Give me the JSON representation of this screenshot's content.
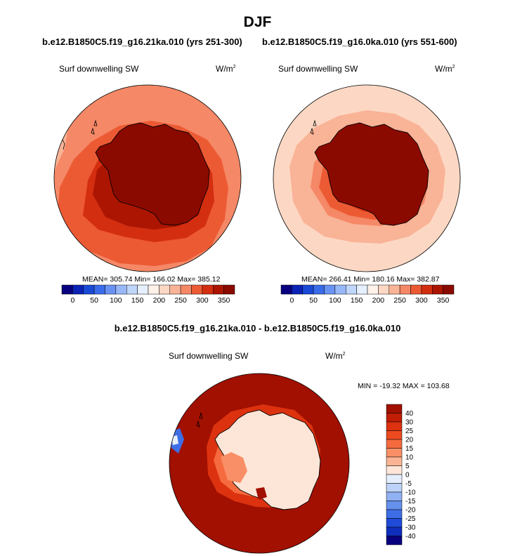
{
  "figure": {
    "title": "DJF",
    "comparison_title": "b.e12.B1850C5.f19_g16.21ka.010 - b.e12.B1850C5.f19_g16.0ka.010"
  },
  "colors": {
    "coast": "#000000",
    "land_left": "#8b0a00",
    "land_right": "#8b0a00",
    "ocean_left": "#f06a44",
    "ocean_right": "#fcd8c4",
    "diff_ocean": "#a11000",
    "diff_land": "#fde6d8"
  },
  "chart_data": [
    {
      "type": "heatmap",
      "projection": "south-polar-stereographic",
      "subtitle": "b.e12.B1850C5.f19_g16.21ka.010 (yrs 251-300)",
      "variable": "Surf downwelling SW",
      "units": "W/m",
      "units_exp": "2",
      "stats": {
        "mean": 305.74,
        "min": 166.02,
        "max": 385.12
      },
      "stats_text": "MEAN= 305.74  Min= 166.02  Max= 385.12",
      "colorbar": {
        "orientation": "horizontal",
        "levels": [
          0,
          25,
          50,
          75,
          100,
          125,
          150,
          175,
          200,
          225,
          250,
          275,
          300,
          325,
          350
        ],
        "labels": [
          "0",
          "50",
          "100",
          "150",
          "200",
          "250",
          "300",
          "350"
        ],
        "colors": [
          "#08007e",
          "#0c23b6",
          "#1a49d6",
          "#3a6cea",
          "#6992f2",
          "#97b7f7",
          "#c0d6fb",
          "#e6f0ff",
          "#fff2ea",
          "#fcd8c4",
          "#f9b396",
          "#f58866",
          "#ec5a34",
          "#d32e10",
          "#ab1502",
          "#8b0a00"
        ]
      }
    },
    {
      "type": "heatmap",
      "projection": "south-polar-stereographic",
      "subtitle": "b.e12.B1850C5.f19_g16.0ka.010 (yrs 551-600)",
      "variable": "Surf downwelling SW",
      "units": "W/m",
      "units_exp": "2",
      "stats": {
        "mean": 266.41,
        "min": 180.16,
        "max": 382.87
      },
      "stats_text": "MEAN= 266.41  Min= 180.16  Max= 382.87",
      "colorbar": {
        "orientation": "horizontal",
        "levels": [
          0,
          25,
          50,
          75,
          100,
          125,
          150,
          175,
          200,
          225,
          250,
          275,
          300,
          325,
          350
        ],
        "labels": [
          "0",
          "50",
          "100",
          "150",
          "200",
          "250",
          "300",
          "350"
        ],
        "colors": [
          "#08007e",
          "#0c23b6",
          "#1a49d6",
          "#3a6cea",
          "#6992f2",
          "#97b7f7",
          "#c0d6fb",
          "#e6f0ff",
          "#fff2ea",
          "#fcd8c4",
          "#f9b396",
          "#f58866",
          "#ec5a34",
          "#d32e10",
          "#ab1502",
          "#8b0a00"
        ]
      }
    },
    {
      "type": "heatmap",
      "projection": "south-polar-stereographic",
      "subtitle": "b.e12.B1850C5.f19_g16.21ka.010 - b.e12.B1850C5.f19_g16.0ka.010",
      "variable": "Surf downwelling SW",
      "units": "W/m",
      "units_exp": "2",
      "stats": {
        "min": -19.32,
        "max": 103.68
      },
      "stats_text": "MIN = -19.32 MAX = 103.68",
      "colorbar": {
        "orientation": "vertical",
        "labels": [
          "40",
          "30",
          "25",
          "20",
          "15",
          "10",
          "5",
          "0",
          "-5",
          "-10",
          "-15",
          "-20",
          "-25",
          "-30",
          "-40"
        ],
        "colors": [
          "#a11000",
          "#c21d05",
          "#dc320f",
          "#ec4a1f",
          "#f56a3e",
          "#f98f66",
          "#fbb594",
          "#fde6d8",
          "#e4eefc",
          "#bcd2f8",
          "#90b1f2",
          "#6590ec",
          "#3e6ee6",
          "#1f4bd8",
          "#0f2ebc",
          "#08007e"
        ]
      }
    }
  ]
}
